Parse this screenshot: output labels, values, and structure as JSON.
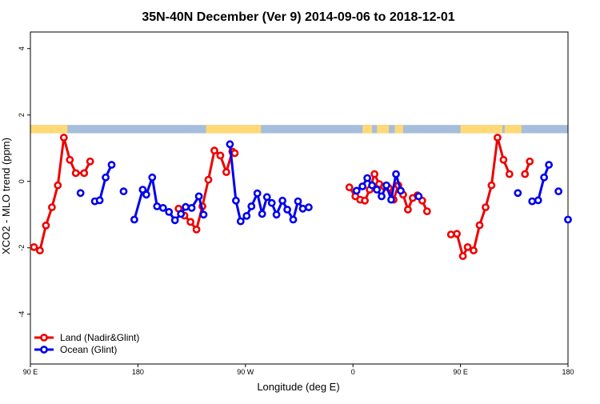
{
  "chart_data": {
    "type": "line",
    "title": "35N-40N December (Ver 9)   2014-09-06 to 2018-12-01",
    "xlabel": "Longitude (deg E)",
    "ylabel": "XCO2 - MLO trend (ppm)",
    "xlim": [
      90,
      540
    ],
    "ylim": [
      -5.5,
      4.5
    ],
    "x_ticks": [
      {
        "value": 90,
        "label": "90 E"
      },
      {
        "value": 180,
        "label": "180"
      },
      {
        "value": 270,
        "label": "90 W"
      },
      {
        "value": 360,
        "label": "0"
      },
      {
        "value": 450,
        "label": "90 E"
      },
      {
        "value": 540,
        "label": "180"
      }
    ],
    "y_ticks": [
      {
        "value": -4,
        "label": "-4"
      },
      {
        "value": -2,
        "label": "-2"
      },
      {
        "value": 0,
        "label": "0"
      },
      {
        "value": 2,
        "label": "2"
      },
      {
        "value": 4,
        "label": "4"
      }
    ],
    "legend_position": "bottom-left",
    "land_mask_band": {
      "y_range": [
        1.45,
        1.7
      ],
      "ocean_color": "#a6bddb",
      "land_color": "#fed976",
      "land_intervals": [
        [
          90,
          121
        ],
        [
          237,
          283
        ],
        [
          368,
          376
        ],
        [
          380,
          390
        ],
        [
          395,
          402
        ],
        [
          450,
          485
        ],
        [
          487,
          501
        ]
      ]
    },
    "series": [
      {
        "name": "Land (Nadir&Glint)",
        "color": "#ee0000",
        "segments": [
          [
            [
              93,
              -1.98
            ],
            [
              98,
              -2.08
            ],
            [
              103,
              -1.33
            ],
            [
              108,
              -0.78
            ],
            [
              113,
              -0.12
            ],
            [
              118,
              1.32
            ],
            [
              123,
              0.65
            ],
            [
              128,
              0.25
            ],
            [
              135,
              0.25
            ],
            [
              140,
              0.6
            ]
          ],
          [
            [
              214,
              -0.82
            ],
            [
              219,
              -1.03
            ],
            [
              224,
              -1.22
            ],
            [
              229,
              -1.45
            ],
            [
              234,
              -0.75
            ],
            [
              239,
              0.05
            ],
            [
              244,
              0.93
            ],
            [
              249,
              0.78
            ],
            [
              254,
              0.28
            ],
            [
              259,
              0.9
            ],
            [
              261,
              0.85
            ]
          ],
          [
            [
              357,
              -0.18
            ],
            [
              362,
              -0.45
            ],
            [
              366,
              -0.55
            ],
            [
              370,
              -0.58
            ],
            [
              374,
              -0.25
            ],
            [
              378,
              0.22
            ],
            [
              382,
              -0.08
            ],
            [
              386,
              -0.15
            ],
            [
              390,
              -0.2
            ],
            [
              394,
              -0.55
            ],
            [
              398,
              -0.12
            ],
            [
              402,
              -0.4
            ],
            [
              406,
              -0.85
            ],
            [
              410,
              -0.5
            ],
            [
              414,
              -0.42
            ],
            [
              418,
              -0.58
            ],
            [
              422,
              -0.9
            ]
          ],
          [
            [
              442,
              -1.6
            ],
            [
              447,
              -1.58
            ],
            [
              452,
              -2.25
            ],
            [
              456,
              -1.98
            ],
            [
              461,
              -2.08
            ],
            [
              466,
              -1.32
            ],
            [
              471,
              -0.78
            ],
            [
              476,
              -0.12
            ],
            [
              481,
              1.32
            ],
            [
              486,
              0.65
            ],
            [
              491,
              0.22
            ]
          ],
          [
            [
              504,
              0.22
            ],
            [
              508,
              0.6
            ]
          ]
        ]
      },
      {
        "name": "Ocean (Glint)",
        "color": "#0000ee",
        "segments": [
          [
            [
              132,
              -0.35
            ]
          ],
          [
            [
              144,
              -0.6
            ],
            [
              148,
              -0.57
            ],
            [
              153,
              0.12
            ],
            [
              158,
              0.5
            ]
          ],
          [
            [
              168,
              -0.3
            ]
          ],
          [
            [
              177,
              -1.15
            ],
            [
              184,
              -0.25
            ],
            [
              187,
              -0.4
            ],
            [
              192,
              0.12
            ],
            [
              196,
              -0.75
            ],
            [
              201,
              -0.8
            ],
            [
              206,
              -0.92
            ],
            [
              211,
              -1.17
            ],
            [
              216,
              -0.98
            ],
            [
              220,
              -0.77
            ],
            [
              225,
              -0.8
            ],
            [
              231,
              -0.45
            ],
            [
              235,
              -1.0
            ]
          ],
          [
            [
              257,
              1.12
            ],
            [
              262,
              -0.58
            ],
            [
              266,
              -1.2
            ],
            [
              271,
              -1.04
            ],
            [
              275,
              -0.75
            ],
            [
              280,
              -0.36
            ],
            [
              284,
              -0.98
            ],
            [
              288,
              -0.47
            ],
            [
              292,
              -0.65
            ],
            [
              296,
              -1.0
            ],
            [
              301,
              -0.58
            ],
            [
              305,
              -0.85
            ],
            [
              310,
              -1.15
            ],
            [
              314,
              -0.6
            ],
            [
              318,
              -0.82
            ],
            [
              323,
              -0.78
            ]
          ],
          [
            [
              363,
              -0.28
            ],
            [
              368,
              -0.15
            ],
            [
              372,
              0.1
            ],
            [
              376,
              -0.12
            ],
            [
              380,
              -0.25
            ],
            [
              384,
              -0.45
            ],
            [
              388,
              -0.12
            ],
            [
              392,
              -0.55
            ],
            [
              396,
              0.22
            ],
            [
              400,
              -0.28
            ]
          ],
          [
            [
              415,
              -0.45
            ]
          ],
          [
            [
              498,
              -0.35
            ]
          ],
          [
            [
              510,
              -0.6
            ],
            [
              515,
              -0.57
            ],
            [
              520,
              0.12
            ],
            [
              524,
              0.5
            ]
          ],
          [
            [
              532,
              -0.3
            ]
          ],
          [
            [
              540,
              -1.15
            ]
          ]
        ]
      }
    ]
  }
}
